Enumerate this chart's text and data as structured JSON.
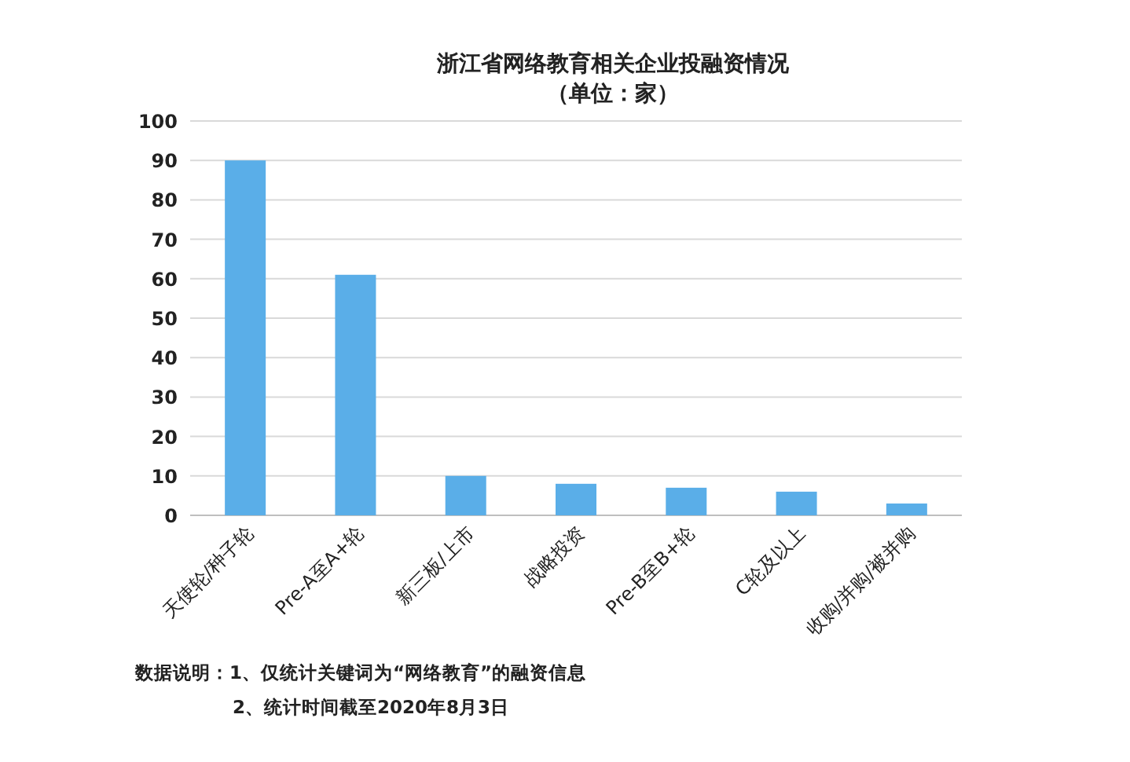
{
  "chart_data": {
    "type": "bar",
    "title": "浙江省网络教育相关企业投融资情况",
    "subtitle": "（单位：家）",
    "categories": [
      "天使轮/种子轮",
      "Pre-A至A+轮",
      "新三板/上市",
      "战略投资",
      "Pre-B至B+轮",
      "C轮及以上",
      "收购/并购/被并购"
    ],
    "values": [
      90,
      61,
      10,
      8,
      7,
      6,
      3
    ],
    "color": "#5aaee8",
    "ylim": [
      0,
      100
    ],
    "yticks": [
      0,
      10,
      20,
      30,
      40,
      50,
      60,
      70,
      80,
      90,
      100
    ],
    "grid": "y",
    "annotations": [
      "数据说明：1、仅统计关键词为“网络教育”的融资信息",
      "2、统计时间截至2020年8月3日"
    ]
  }
}
